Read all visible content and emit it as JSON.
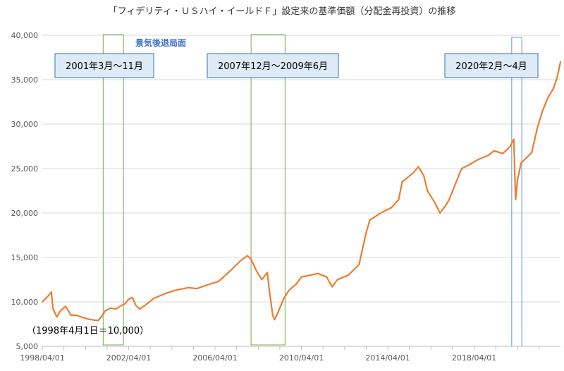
{
  "chart_data": {
    "type": "line",
    "title": "「フィデリティ・ＵＳハイ・イールドＦ」設定来の基準価額（分配金再投資）の推移",
    "note": "（1998年4月1日＝10,000）",
    "recession_label": "景気後退局面",
    "periods": [
      {
        "label": "2001年3月～11月",
        "start": "2001-03",
        "end": "2001-11"
      },
      {
        "label": "2007年12月～2009年6月",
        "start": "2007-12",
        "end": "2009-06"
      },
      {
        "label": "2020年2月～4月",
        "start": "2020-02",
        "end": "2020-04"
      }
    ],
    "xlim": [
      "1998-04-01",
      "2022-03-31"
    ],
    "ylim": [
      5000,
      40000
    ],
    "x_ticks": [
      "1998/04/01",
      "2002/04/01",
      "2006/04/01",
      "2010/04/01",
      "2014/04/01",
      "2018/04/01"
    ],
    "y_ticks": [
      "5,000",
      "10,000",
      "15,000",
      "20,000",
      "25,000",
      "30,000",
      "35,000",
      "40,000"
    ],
    "grid": true,
    "series": [
      {
        "color": "#ED7D31",
        "points": [
          [
            "1998-04-01",
            10000
          ],
          [
            "1998-07-01",
            10600
          ],
          [
            "1998-09-01",
            11100
          ],
          [
            "1998-10-01",
            9200
          ],
          [
            "1998-12-01",
            8300
          ],
          [
            "1999-02-01",
            9000
          ],
          [
            "1999-05-01",
            9500
          ],
          [
            "1999-08-01",
            8500
          ],
          [
            "1999-11-01",
            8500
          ],
          [
            "2000-03-01",
            8200
          ],
          [
            "2000-07-01",
            8000
          ],
          [
            "2000-11-01",
            7900
          ],
          [
            "2001-01-01",
            8400
          ],
          [
            "2001-03-01",
            9000
          ],
          [
            "2001-06-01",
            9300
          ],
          [
            "2001-09-01",
            9200
          ],
          [
            "2001-11-01",
            9500
          ],
          [
            "2002-02-01",
            9800
          ],
          [
            "2002-04-01",
            10300
          ],
          [
            "2002-06-01",
            10500
          ],
          [
            "2002-08-01",
            9600
          ],
          [
            "2002-10-01",
            9200
          ],
          [
            "2003-01-01",
            9600
          ],
          [
            "2003-06-01",
            10400
          ],
          [
            "2004-01-01",
            11000
          ],
          [
            "2004-06-01",
            11300
          ],
          [
            "2005-01-01",
            11600
          ],
          [
            "2005-06-01",
            11500
          ],
          [
            "2006-01-01",
            12000
          ],
          [
            "2006-06-01",
            12300
          ],
          [
            "2007-01-01",
            13600
          ],
          [
            "2007-06-01",
            14600
          ],
          [
            "2007-10-01",
            15200
          ],
          [
            "2007-12-01",
            14800
          ],
          [
            "2008-03-01",
            13500
          ],
          [
            "2008-06-01",
            12500
          ],
          [
            "2008-09-01",
            13300
          ],
          [
            "2008-10-01",
            11500
          ],
          [
            "2008-12-01",
            8500
          ],
          [
            "2009-01-01",
            8000
          ],
          [
            "2009-03-01",
            8800
          ],
          [
            "2009-06-01",
            10300
          ],
          [
            "2009-09-01",
            11300
          ],
          [
            "2010-01-01",
            12000
          ],
          [
            "2010-04-01",
            12800
          ],
          [
            "2010-09-01",
            13000
          ],
          [
            "2011-01-01",
            13200
          ],
          [
            "2011-06-01",
            12800
          ],
          [
            "2011-09-01",
            11700
          ],
          [
            "2011-12-01",
            12500
          ],
          [
            "2012-06-01",
            13000
          ],
          [
            "2012-12-01",
            14200
          ],
          [
            "2013-04-01",
            17800
          ],
          [
            "2013-06-01",
            19200
          ],
          [
            "2013-12-01",
            20000
          ],
          [
            "2014-06-01",
            20600
          ],
          [
            "2014-10-01",
            21500
          ],
          [
            "2014-12-01",
            23500
          ],
          [
            "2015-06-01",
            24500
          ],
          [
            "2015-09-01",
            25200
          ],
          [
            "2015-12-01",
            24200
          ],
          [
            "2016-02-01",
            22500
          ],
          [
            "2016-06-01",
            21200
          ],
          [
            "2016-09-01",
            20000
          ],
          [
            "2016-12-01",
            20800
          ],
          [
            "2017-02-01",
            21500
          ],
          [
            "2017-06-01",
            23500
          ],
          [
            "2017-09-01",
            25000
          ],
          [
            "2018-01-01",
            25400
          ],
          [
            "2018-06-01",
            26000
          ],
          [
            "2018-12-01",
            26500
          ],
          [
            "2019-03-01",
            27000
          ],
          [
            "2019-08-01",
            26700
          ],
          [
            "2019-12-01",
            27500
          ],
          [
            "2020-02-01",
            28300
          ],
          [
            "2020-03-01",
            21500
          ],
          [
            "2020-04-01",
            23600
          ],
          [
            "2020-06-01",
            25600
          ],
          [
            "2020-12-01",
            26800
          ],
          [
            "2021-03-01",
            29500
          ],
          [
            "2021-06-01",
            31500
          ],
          [
            "2021-09-01",
            33000
          ],
          [
            "2021-12-01",
            34000
          ],
          [
            "2022-02-01",
            35200
          ],
          [
            "2022-03-31",
            37000
          ]
        ]
      }
    ]
  }
}
